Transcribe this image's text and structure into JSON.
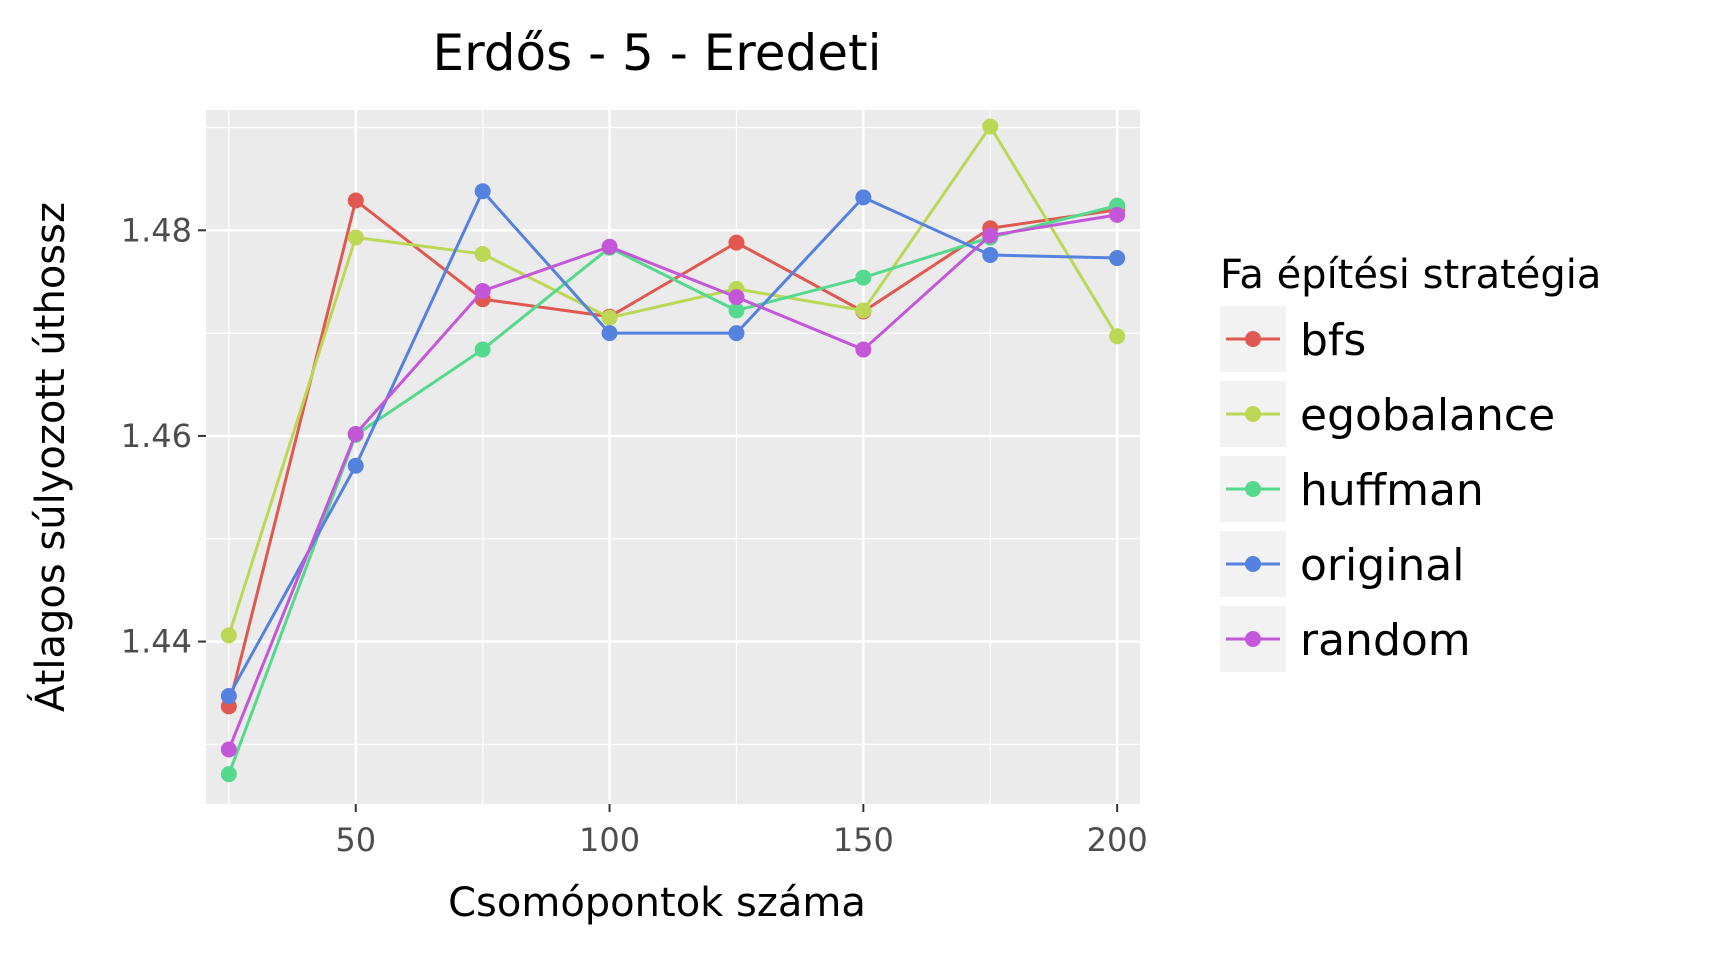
{
  "chart_data": {
    "type": "line",
    "title": "Erdős - 5 - Eredeti",
    "xlabel": "Csomópontok száma",
    "ylabel": "Átlagos súlyozott úthossz",
    "x": [
      25,
      50,
      75,
      100,
      125,
      150,
      175,
      200
    ],
    "xlim": [
      20.5,
      204.5
    ],
    "ylim": [
      1.4242,
      1.4917
    ],
    "x_ticks": [
      50,
      100,
      150,
      200
    ],
    "x_tick_labels": [
      "50",
      "100",
      "150",
      "200"
    ],
    "y_ticks": [
      1.44,
      1.46,
      1.48
    ],
    "y_tick_labels": [
      "1.44",
      "1.46",
      "1.48"
    ],
    "grid": true,
    "legend": {
      "title": "Fa építési stratégia",
      "position": "right"
    },
    "series": [
      {
        "name": "bfs",
        "color": "#e0584f",
        "values": [
          1.4337,
          1.4829,
          1.4733,
          1.4716,
          1.4788,
          1.4721,
          1.4802,
          1.482
        ]
      },
      {
        "name": "egobalance",
        "color": "#bcd755",
        "values": [
          1.4406,
          1.4793,
          1.4777,
          1.4715,
          1.4743,
          1.4722,
          1.4901,
          1.4697
        ]
      },
      {
        "name": "huffman",
        "color": "#55d98c",
        "values": [
          1.4271,
          1.4601,
          1.4684,
          1.4783,
          1.4722,
          1.4754,
          1.4793,
          1.4824
        ]
      },
      {
        "name": "original",
        "color": "#5581df",
        "values": [
          1.4347,
          1.4571,
          1.4838,
          1.47,
          1.47,
          1.4832,
          1.4776,
          1.4773
        ]
      },
      {
        "name": "random",
        "color": "#c457d9",
        "values": [
          1.4295,
          1.4602,
          1.4741,
          1.4784,
          1.4735,
          1.4684,
          1.4795,
          1.4815
        ]
      }
    ]
  }
}
